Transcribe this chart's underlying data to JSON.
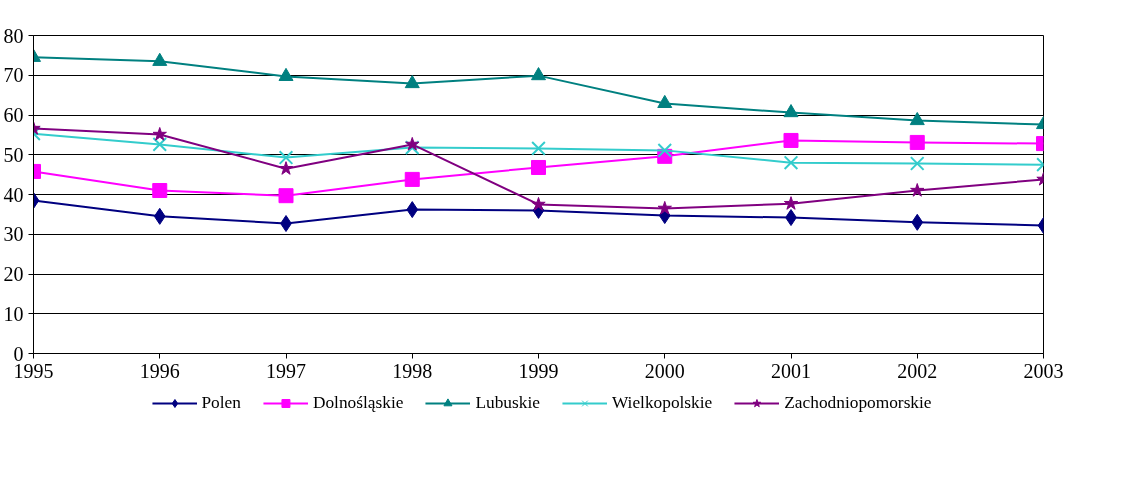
{
  "chart_data": {
    "type": "line",
    "x": [
      1995,
      1996,
      1997,
      1998,
      1999,
      2000,
      2001,
      2002,
      2003
    ],
    "xlim": [
      1995,
      2003
    ],
    "xticks": [
      1995,
      1996,
      1997,
      1998,
      1999,
      2000,
      2001,
      2002,
      2003
    ],
    "ylim": [
      0,
      80
    ],
    "yticks": [
      0,
      10,
      20,
      30,
      40,
      50,
      60,
      70,
      80
    ],
    "grid": "y",
    "legend": "bottom",
    "line_style": "solid",
    "series": [
      {
        "name": "Polen",
        "color": "#000080",
        "marker": "diamond",
        "values": [
          38.5,
          34.5,
          32.7,
          36.2,
          36.0,
          34.7,
          34.2,
          33.0,
          32.2
        ]
      },
      {
        "name": "Dolnośląskie",
        "color": "#ff00ff",
        "marker": "square",
        "values": [
          45.8,
          41.0,
          39.7,
          43.8,
          46.8,
          49.6,
          53.6,
          53.1,
          52.8
        ]
      },
      {
        "name": "Lubuskie",
        "color": "#008080",
        "marker": "triangle",
        "values": [
          74.5,
          73.5,
          69.7,
          67.9,
          69.9,
          62.9,
          60.6,
          58.6,
          57.6
        ]
      },
      {
        "name": "Wielkopolskie",
        "color": "#33cccc",
        "marker": "cross",
        "values": [
          55.3,
          52.6,
          49.3,
          51.8,
          51.6,
          51.1,
          48.0,
          47.8,
          47.5
        ]
      },
      {
        "name": "Zachodniopomorskie",
        "color": "#800080",
        "marker": "star",
        "values": [
          56.6,
          55.1,
          46.5,
          52.6,
          37.5,
          36.5,
          37.7,
          41.0,
          43.8
        ]
      }
    ]
  }
}
